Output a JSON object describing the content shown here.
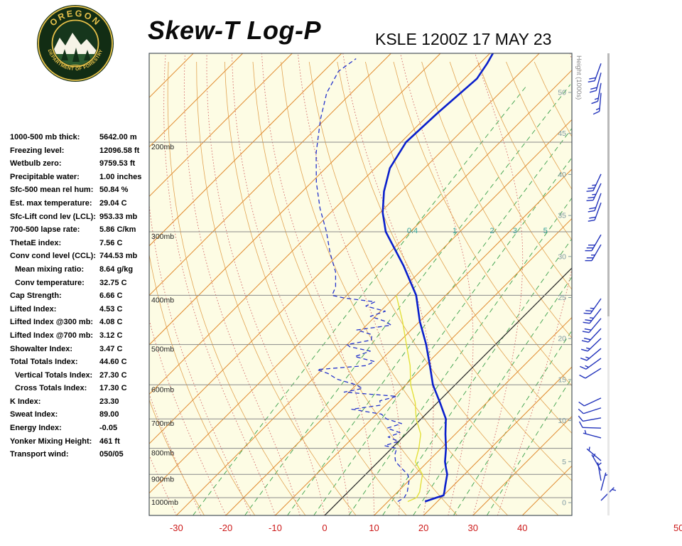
{
  "header": {
    "title": "Skew-T Log-P",
    "station": "KSLE 1200Z 17 MAY 23"
  },
  "logo": {
    "top_text": "OREGON",
    "bottom_text": "DEPARTMENT OF FORESTRY"
  },
  "stats": [
    {
      "label": "1000-500 mb thick:",
      "value": "5642.00 m",
      "indent": false
    },
    {
      "label": "Freezing level:",
      "value": "12096.58 ft",
      "indent": false
    },
    {
      "label": "Wetbulb zero:",
      "value": "9759.53 ft",
      "indent": false
    },
    {
      "label": "Precipitable water:",
      "value": "1.00 inches",
      "indent": false
    },
    {
      "label": "Sfc-500 mean rel hum:",
      "value": "50.84 %",
      "indent": false
    },
    {
      "label": "Est. max temperature:",
      "value": "29.04 C",
      "indent": false
    },
    {
      "label": "Sfc-Lift cond lev (LCL):",
      "value": "953.33 mb",
      "indent": false
    },
    {
      "label": "700-500 lapse rate:",
      "value": "5.86 C/km",
      "indent": false
    },
    {
      "label": "ThetaE index:",
      "value": "7.56 C",
      "indent": false
    },
    {
      "label": "Conv cond level (CCL):",
      "value": "744.53 mb",
      "indent": false
    },
    {
      "label": "Mean mixing ratio:",
      "value": "8.64 g/kg",
      "indent": true
    },
    {
      "label": "Conv temperature:",
      "value": "32.75 C",
      "indent": true
    },
    {
      "label": "Cap Strength:",
      "value": "6.66 C",
      "indent": false
    },
    {
      "label": "Lifted Index:",
      "value": "4.53 C",
      "indent": false
    },
    {
      "label": "Lifted Index @300 mb:",
      "value": "4.08 C",
      "indent": false
    },
    {
      "label": "Lifted Index @700 mb:",
      "value": "3.12 C",
      "indent": false
    },
    {
      "label": "Showalter Index:",
      "value": "3.47 C",
      "indent": false
    },
    {
      "label": "Total Totals Index:",
      "value": "44.60 C",
      "indent": false
    },
    {
      "label": "Vertical Totals Index:",
      "value": "27.30 C",
      "indent": true
    },
    {
      "label": "Cross Totals Index:",
      "value": "17.30 C",
      "indent": true
    },
    {
      "label": "K Index:",
      "value": "23.30",
      "indent": false
    },
    {
      "label": "Sweat Index:",
      "value": "89.00",
      "indent": false
    },
    {
      "label": "Energy Index:",
      "value": "-0.05",
      "indent": false
    },
    {
      "label": "Yonker Mixing Height:",
      "value": "461 ft",
      "indent": false
    },
    {
      "label": "Transport wind:",
      "value": "050/05",
      "indent": false
    }
  ],
  "chart_data": {
    "type": "skew-t",
    "title": "Skew-T Log-P",
    "station": "KSLE 1200Z 17 MAY 23",
    "pressure_lines_mb": [
      200,
      300,
      400,
      500,
      600,
      700,
      800,
      900,
      1000
    ],
    "pressure_label_suffix": "mb",
    "temp_ticks_c": [
      -30,
      -20,
      -10,
      0,
      10,
      20,
      30,
      40
    ],
    "temp_tick_partial_label": "50",
    "height_ticks_kft": [
      50,
      45,
      40,
      35,
      30,
      25,
      20,
      15,
      10,
      5,
      0
    ],
    "height_axis_label": "Height (1000s)",
    "mixing_ratio_lines_gkg": [
      0.4,
      1,
      2,
      3,
      5,
      8,
      12,
      20,
      30
    ],
    "mixing_ratio_labeled": [
      0.4,
      1,
      2,
      3,
      5
    ],
    "isotherms_c": {
      "min": -130,
      "max": 40,
      "step": 10
    },
    "dry_adiabats_c": {
      "min": -30,
      "max": 120,
      "step": 10
    },
    "moist_adiabats_c": {
      "min": -30,
      "max": 35,
      "step": 5
    },
    "profiles": {
      "temperature_c_by_mb": [
        [
          1018,
          17.5
        ],
        [
          1000,
          19.0
        ],
        [
          990,
          20.0
        ],
        [
          975,
          19.5
        ],
        [
          950,
          18.5
        ],
        [
          925,
          17.5
        ],
        [
          900,
          16.5
        ],
        [
          875,
          15.0
        ],
        [
          850,
          13.5
        ],
        [
          800,
          11.0
        ],
        [
          750,
          8.0
        ],
        [
          700,
          5.0
        ],
        [
          650,
          0.5
        ],
        [
          600,
          -4.5
        ],
        [
          550,
          -9.0
        ],
        [
          500,
          -14.0
        ],
        [
          450,
          -20.0
        ],
        [
          400,
          -26.0
        ],
        [
          350,
          -34.5
        ],
        [
          300,
          -45.0
        ],
        [
          275,
          -49.5
        ],
        [
          250,
          -53.5
        ],
        [
          225,
          -57.0
        ],
        [
          200,
          -59.0
        ],
        [
          175,
          -58.5
        ],
        [
          150,
          -57.5
        ],
        [
          140,
          -58.5
        ],
        [
          133,
          -59.5
        ]
      ],
      "dewpoint_c_by_mb": [
        [
          1018,
          12
        ],
        [
          1000,
          12.5
        ],
        [
          975,
          12
        ],
        [
          950,
          11
        ],
        [
          925,
          10
        ],
        [
          900,
          8.5
        ],
        [
          875,
          6
        ],
        [
          850,
          3.5
        ],
        [
          825,
          2
        ],
        [
          800,
          1
        ],
        [
          790,
          -2
        ],
        [
          775,
          0
        ],
        [
          760,
          -3
        ],
        [
          745,
          -1.5
        ],
        [
          730,
          -5
        ],
        [
          715,
          -3
        ],
        [
          700,
          -7
        ],
        [
          685,
          -9
        ],
        [
          670,
          -16
        ],
        [
          658,
          -11
        ],
        [
          645,
          -12
        ],
        [
          632,
          -9.5
        ],
        [
          620,
          -21
        ],
        [
          610,
          -18
        ],
        [
          600,
          -20
        ],
        [
          585,
          -25
        ],
        [
          570,
          -28
        ],
        [
          560,
          -31
        ],
        [
          550,
          -22
        ],
        [
          540,
          -21
        ],
        [
          528,
          -26
        ],
        [
          515,
          -24
        ],
        [
          505,
          -29
        ],
        [
          500,
          -30
        ],
        [
          490,
          -26
        ],
        [
          478,
          -27
        ],
        [
          468,
          -31
        ],
        [
          458,
          -25
        ],
        [
          450,
          -27
        ],
        [
          440,
          -31
        ],
        [
          430,
          -29
        ],
        [
          420,
          -34
        ],
        [
          412,
          -33
        ],
        [
          405,
          -40
        ],
        [
          400,
          -43
        ],
        [
          385,
          -44
        ],
        [
          360,
          -47
        ],
        [
          330,
          -52
        ],
        [
          300,
          -57
        ],
        [
          270,
          -63
        ],
        [
          240,
          -69
        ],
        [
          210,
          -75
        ],
        [
          180,
          -81
        ],
        [
          160,
          -85
        ],
        [
          145,
          -87
        ],
        [
          137,
          -86
        ]
      ],
      "wetbulb_c_by_mb": [
        [
          1018,
          14
        ],
        [
          1000,
          15
        ],
        [
          975,
          14.5
        ],
        [
          950,
          13.5
        ],
        [
          925,
          12.5
        ],
        [
          900,
          11.5
        ],
        [
          875,
          9.5
        ],
        [
          850,
          7.5
        ],
        [
          800,
          5.5
        ],
        [
          750,
          3
        ],
        [
          700,
          -1
        ],
        [
          650,
          -4.5
        ],
        [
          600,
          -9
        ],
        [
          550,
          -13
        ],
        [
          500,
          -18
        ],
        [
          450,
          -23.5
        ],
        [
          400,
          -30
        ]
      ]
    },
    "wind_barbs": [
      [
        140,
        200,
        20
      ],
      [
        146,
        195,
        20
      ],
      [
        153,
        190,
        15
      ],
      [
        160,
        185,
        15
      ],
      [
        231,
        205,
        25
      ],
      [
        241,
        205,
        25
      ],
      [
        252,
        200,
        20
      ],
      [
        263,
        200,
        20
      ],
      [
        304,
        210,
        30
      ],
      [
        318,
        210,
        25
      ],
      [
        406,
        215,
        25
      ],
      [
        425,
        218,
        25
      ],
      [
        444,
        220,
        20
      ],
      [
        465,
        223,
        20
      ],
      [
        486,
        226,
        15
      ],
      [
        509,
        230,
        15
      ],
      [
        532,
        234,
        15
      ],
      [
        557,
        238,
        10
      ],
      [
        637,
        245,
        10
      ],
      [
        666,
        252,
        10
      ],
      [
        697,
        260,
        10
      ],
      [
        730,
        272,
        10
      ],
      [
        763,
        285,
        5
      ],
      [
        846,
        310,
        5
      ],
      [
        885,
        330,
        5
      ],
      [
        926,
        350,
        5
      ],
      [
        968,
        15,
        5
      ],
      [
        1013,
        45,
        5
      ]
    ],
    "colors": {
      "background": "#fdfce4",
      "temperature": "#0a1fcc",
      "dewpoint": "#2433cc",
      "wetbulb": "#e3e03a",
      "isotherm": "#e08a2e",
      "zero_isotherm": "#2a2a2a",
      "dry_adiabat": "#e2a352",
      "moist_adiabat": "#d46a6a",
      "mixing_ratio": "#3aa04a",
      "mixing_label": "#2f9e96",
      "pressure_line": "#8a8a8a",
      "pressure_label": "#222222",
      "temp_label": "#cc1818",
      "height_label": "#7f9aa3",
      "height_axis_label": "#8a8a8a",
      "border": "#4a545c",
      "barb": "#2233bb"
    }
  }
}
